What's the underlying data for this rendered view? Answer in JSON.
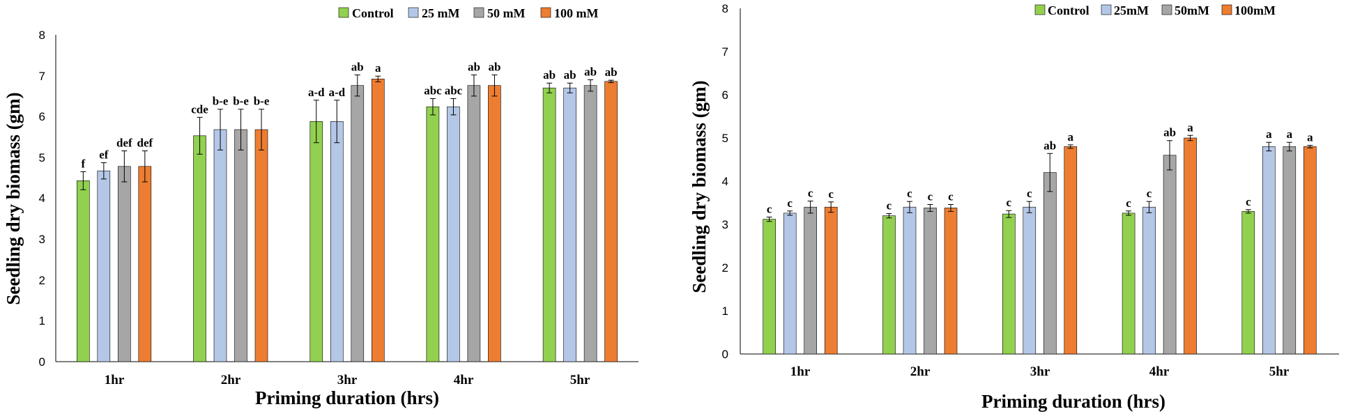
{
  "colors": {
    "Control": "#92d050",
    "25 mM": "#b4c7e7",
    "50 mM": "#a6a6a6",
    "100 mM": "#ed7d31"
  },
  "chart_data": [
    {
      "type": "bar",
      "title": "",
      "xlabel": "Priming duration (hrs)",
      "ylabel": "Seedling dry biomass (gm)",
      "ylim": [
        0,
        8
      ],
      "yticks": [
        "0",
        "1",
        "2",
        "3",
        "4",
        "5",
        "6",
        "7",
        "8"
      ],
      "legend": "top-right",
      "categories": [
        "1hr",
        "2hr",
        "3hr",
        "4hr",
        "5hr"
      ],
      "series": [
        {
          "name": "Control",
          "color_key": "Control",
          "values": [
            4.43,
            5.53,
            5.88,
            6.24,
            6.7
          ],
          "errors": [
            0.22,
            0.45,
            0.52,
            0.2,
            0.12
          ],
          "labels": [
            "f",
            "cde",
            "a-d",
            "abc",
            "ab"
          ]
        },
        {
          "name": "25 mM",
          "color_key": "25 mM",
          "values": [
            4.67,
            5.68,
            5.88,
            6.24,
            6.7
          ],
          "errors": [
            0.2,
            0.5,
            0.52,
            0.2,
            0.12
          ],
          "labels": [
            "ef",
            "b-e",
            "a-d",
            "abc",
            "ab"
          ]
        },
        {
          "name": "50 mM",
          "color_key": "50 mM",
          "values": [
            4.78,
            5.68,
            6.76,
            6.76,
            6.76
          ],
          "errors": [
            0.38,
            0.5,
            0.26,
            0.26,
            0.14
          ],
          "labels": [
            "def",
            "b-e",
            "ab",
            "ab",
            "ab"
          ]
        },
        {
          "name": "100 mM",
          "color_key": "100 mM",
          "values": [
            4.78,
            5.68,
            6.92,
            6.76,
            6.86
          ],
          "errors": [
            0.38,
            0.5,
            0.07,
            0.26,
            0.03
          ],
          "labels": [
            "def",
            "b-e",
            "a",
            "ab",
            "ab"
          ]
        }
      ]
    },
    {
      "type": "bar",
      "title": "",
      "xlabel": "Priming duration (hrs)",
      "ylabel": "Seedling dry biomass (gm)",
      "ylim": [
        0,
        8
      ],
      "yticks": [
        "0",
        "1",
        "2",
        "3",
        "4",
        "5",
        "6",
        "7",
        "8"
      ],
      "legend": "top-right",
      "categories": [
        "1hr",
        "2hr",
        "3hr",
        "4hr",
        "5hr"
      ],
      "series": [
        {
          "name": "Control",
          "color_key": "Control",
          "values": [
            3.12,
            3.2,
            3.24,
            3.26,
            3.3
          ],
          "errors": [
            0.05,
            0.05,
            0.08,
            0.05,
            0.04
          ],
          "labels": [
            "c",
            "c",
            "c",
            "c",
            "c"
          ]
        },
        {
          "name": "25mM",
          "color_key": "25 mM",
          "values": [
            3.26,
            3.4,
            3.4,
            3.4,
            4.8
          ],
          "errors": [
            0.05,
            0.13,
            0.13,
            0.13,
            0.1
          ],
          "labels": [
            "c",
            "c",
            "c",
            "c",
            "a"
          ]
        },
        {
          "name": "50mM",
          "color_key": "50 mM",
          "values": [
            3.4,
            3.38,
            4.2,
            4.6,
            4.8
          ],
          "errors": [
            0.14,
            0.08,
            0.44,
            0.34,
            0.1
          ],
          "labels": [
            "c",
            "c",
            "ab",
            "ab",
            "a"
          ]
        },
        {
          "name": "100mM",
          "color_key": "100 mM",
          "values": [
            3.4,
            3.38,
            4.8,
            5.0,
            4.8
          ],
          "errors": [
            0.12,
            0.08,
            0.04,
            0.06,
            0.03
          ],
          "labels": [
            "c",
            "c",
            "a",
            "a",
            "a"
          ]
        }
      ]
    }
  ]
}
